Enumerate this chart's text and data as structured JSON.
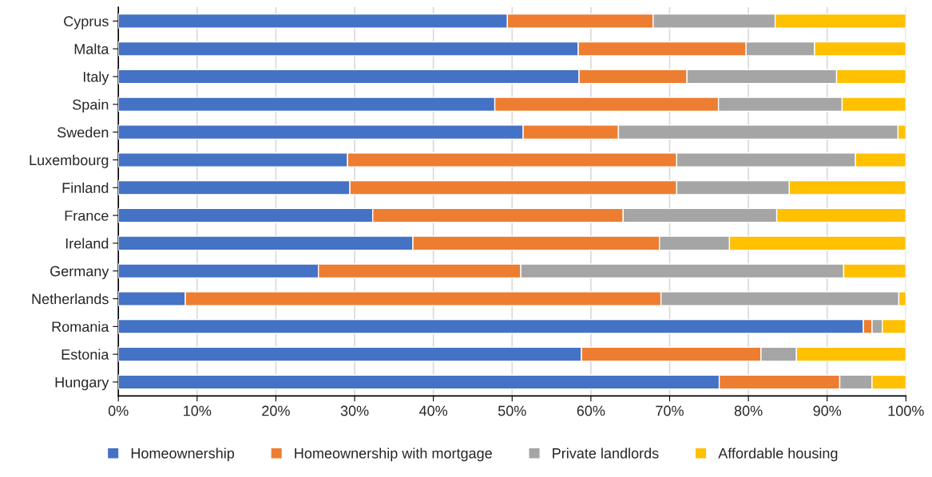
{
  "chart_data": {
    "type": "bar",
    "orientation": "horizontal",
    "stacked": true,
    "categories": [
      "Cyprus",
      "Malta",
      "Italy",
      "Spain",
      "Sweden",
      "Luxembourg",
      "Finland",
      "France",
      "Ireland",
      "Germany",
      "Netherlands",
      "Romania",
      "Estonia",
      "Hungary"
    ],
    "series": [
      {
        "name": "Homeownership",
        "color": "#4472c4",
        "values": [
          49.4,
          58.4,
          58.5,
          47.8,
          51.4,
          29.1,
          29.4,
          32.3,
          37.4,
          25.4,
          8.5,
          94.6,
          58.8,
          76.3
        ]
      },
      {
        "name": "Homeownership with mortgage",
        "color": "#ed7d31",
        "values": [
          18.5,
          21.3,
          13.7,
          28.4,
          12.1,
          41.8,
          41.5,
          31.8,
          31.3,
          25.7,
          60.4,
          1.1,
          22.8,
          15.3
        ]
      },
      {
        "name": "Private landlords",
        "color": "#a5a5a5",
        "values": [
          15.5,
          8.7,
          19.0,
          15.7,
          35.5,
          22.7,
          14.3,
          19.5,
          8.9,
          41.0,
          30.2,
          1.3,
          4.5,
          4.1
        ]
      },
      {
        "name": "Affordable housing",
        "color": "#ffc000",
        "values": [
          16.6,
          11.6,
          8.8,
          8.1,
          1.0,
          6.4,
          14.8,
          16.4,
          22.4,
          7.9,
          0.9,
          3.0,
          13.9,
          4.3
        ]
      }
    ],
    "xlim": [
      0,
      100
    ],
    "xticks": [
      {
        "value": 0,
        "label": "0%"
      },
      {
        "value": 10,
        "label": "10%"
      },
      {
        "value": 20,
        "label": "20%"
      },
      {
        "value": 30,
        "label": "30%"
      },
      {
        "value": 40,
        "label": "40%"
      },
      {
        "value": 50,
        "label": "50%"
      },
      {
        "value": 60,
        "label": "60%"
      },
      {
        "value": 70,
        "label": "70%"
      },
      {
        "value": 80,
        "label": "80%"
      },
      {
        "value": 90,
        "label": "90%"
      },
      {
        "value": 100,
        "label": "100%"
      }
    ],
    "grid": "x",
    "legend": "bottom"
  }
}
